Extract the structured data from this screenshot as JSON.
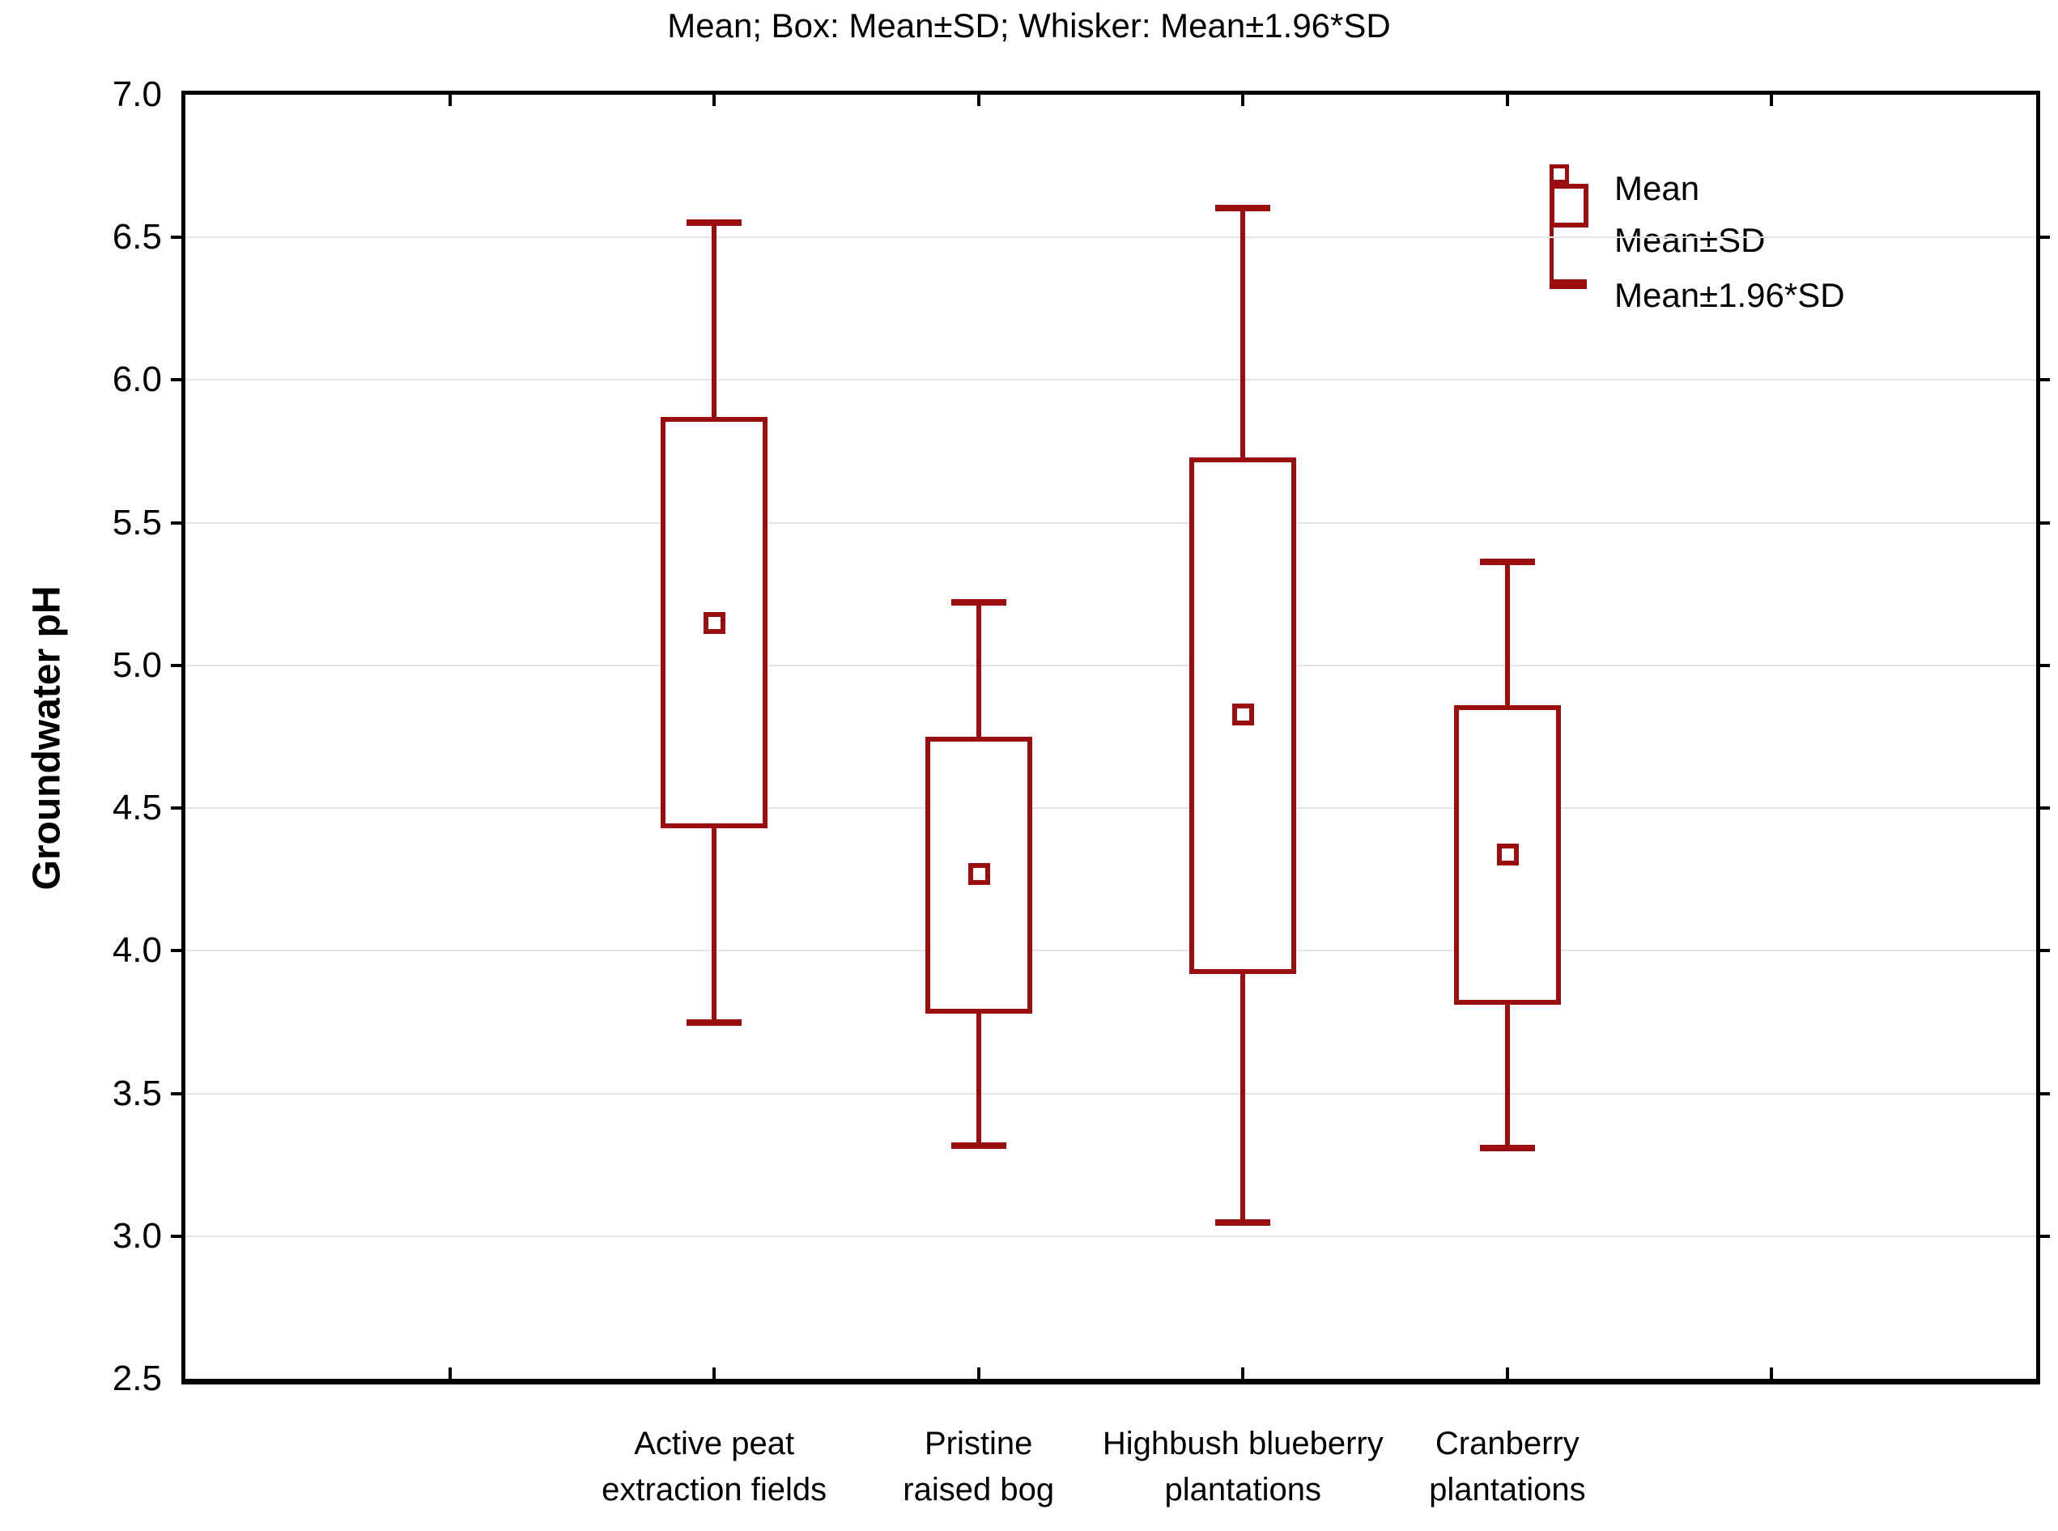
{
  "title": "Mean; Box: Mean±SD; Whisker: Mean±1.96*SD",
  "y_axis": {
    "label": "Groundwater pH",
    "min": 2.5,
    "max": 7.0,
    "tick_step": 0.5,
    "ticks": [
      "7.0",
      "6.5",
      "6.0",
      "5.5",
      "5.0",
      "4.5",
      "4.0",
      "3.5",
      "3.0",
      "2.5"
    ]
  },
  "legend": {
    "items": [
      {
        "icon": "mean-point-icon",
        "label": "Mean"
      },
      {
        "icon": "box-icon",
        "label": "Mean±SD"
      },
      {
        "icon": "whisker-icon",
        "label": "Mean±1.96*SD"
      }
    ]
  },
  "colors": {
    "series": "#9A0E10",
    "grid": "#E4E4E4",
    "axis": "#000000",
    "text": "#000000",
    "background": "#FFFFFF"
  },
  "chart_data": {
    "type": "box",
    "box_rule": "Mean±SD",
    "whisker_rule": "Mean±1.96*SD",
    "title": "Mean; Box: Mean±SD; Whisker: Mean±1.96*SD",
    "ylabel": "Groundwater pH",
    "ylim": [
      2.5,
      7.0
    ],
    "grid": "horizontal",
    "legend_position": "top-right-inside",
    "categories": [
      [
        "Active peat",
        "extraction fields"
      ],
      [
        "Pristine",
        "raised bog"
      ],
      [
        "Highbush blueberry",
        "plantations"
      ],
      [
        "Cranberry",
        "plantations"
      ]
    ],
    "series": [
      {
        "category": "Active peat extraction fields",
        "mean": 5.15,
        "box_low": 4.43,
        "box_high": 5.87,
        "whisker_low": 3.74,
        "whisker_high": 6.56
      },
      {
        "category": "Pristine raised bog",
        "mean": 4.27,
        "box_low": 3.78,
        "box_high": 4.75,
        "whisker_low": 3.31,
        "whisker_high": 5.23
      },
      {
        "category": "Highbush blueberry plantations",
        "mean": 4.83,
        "box_low": 3.92,
        "box_high": 5.73,
        "whisker_low": 3.04,
        "whisker_high": 6.61
      },
      {
        "category": "Cranberry plantations",
        "mean": 4.34,
        "box_low": 3.81,
        "box_high": 4.86,
        "whisker_low": 3.3,
        "whisker_high": 5.37
      }
    ]
  }
}
